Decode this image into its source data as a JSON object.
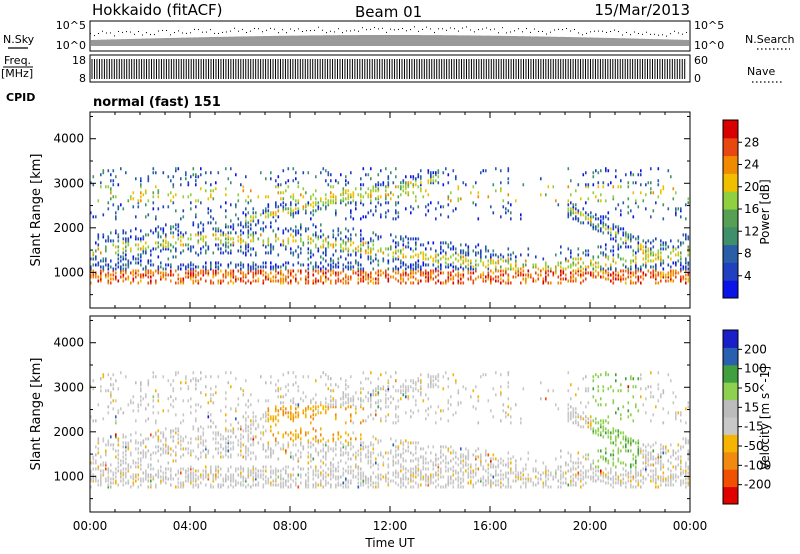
{
  "header": {
    "station": "Hokkaido (fitACF)",
    "beam": "Beam 01",
    "date": "15/Mar/2013"
  },
  "top_panels": {
    "nsky_label": "N.Sky",
    "nsky_ticks": [
      "10^5",
      "10^0"
    ],
    "nsearch_label": "N.Search",
    "nsearch_ticks": [
      "10^5",
      "10^0"
    ],
    "freq_label": "Freq.",
    "freq_unit": "[MHz]",
    "freq_ticks": [
      "18",
      "8"
    ],
    "nave_label": "Nave",
    "nave_ticks": [
      "60",
      "0"
    ],
    "cpid_label": "CPID",
    "cpid_value": "normal (fast) 151"
  },
  "colors": {
    "power_scale": [
      "#0a14e6",
      "#2040c0",
      "#2a5fa8",
      "#3f8f6a",
      "#55a055",
      "#8fcf40",
      "#f0c000",
      "#f08a00",
      "#e84810",
      "#d80000"
    ],
    "velocity_scale": [
      "#e00000",
      "#f05000",
      "#f08a10",
      "#f5b400",
      "#c8c8c8",
      "#bcbcbc",
      "#8ed050",
      "#40a040",
      "#2a60b0",
      "#1a20c8"
    ]
  },
  "chart_data": [
    {
      "type": "heatmap",
      "name": "power",
      "xlabel": "",
      "ylabel": "Slant Range [km]",
      "ylim": [
        200,
        4600
      ],
      "xlim": [
        0,
        24
      ],
      "yticks": [
        "1000",
        "2000",
        "3000",
        "4000"
      ],
      "colorbar_label": "Power [dB]",
      "colorbar_ticks": [
        "4",
        "8",
        "12",
        "16",
        "20",
        "24",
        "28"
      ],
      "colorbar_range": [
        0,
        30
      ]
    },
    {
      "type": "heatmap",
      "name": "velocity",
      "xlabel": "Time UT",
      "ylabel": "Slant Range [km]",
      "ylim": [
        200,
        4600
      ],
      "xlim": [
        0,
        24
      ],
      "xticks": [
        "00:00",
        "04:00",
        "08:00",
        "12:00",
        "16:00",
        "20:00",
        "00:00"
      ],
      "yticks": [
        "1000",
        "2000",
        "3000",
        "4000"
      ],
      "colorbar_label": "Velocity [m s^-1]",
      "colorbar_ticks": [
        "200",
        "100",
        "50",
        "15",
        "-15",
        "-50",
        "-100",
        "-200"
      ]
    }
  ]
}
